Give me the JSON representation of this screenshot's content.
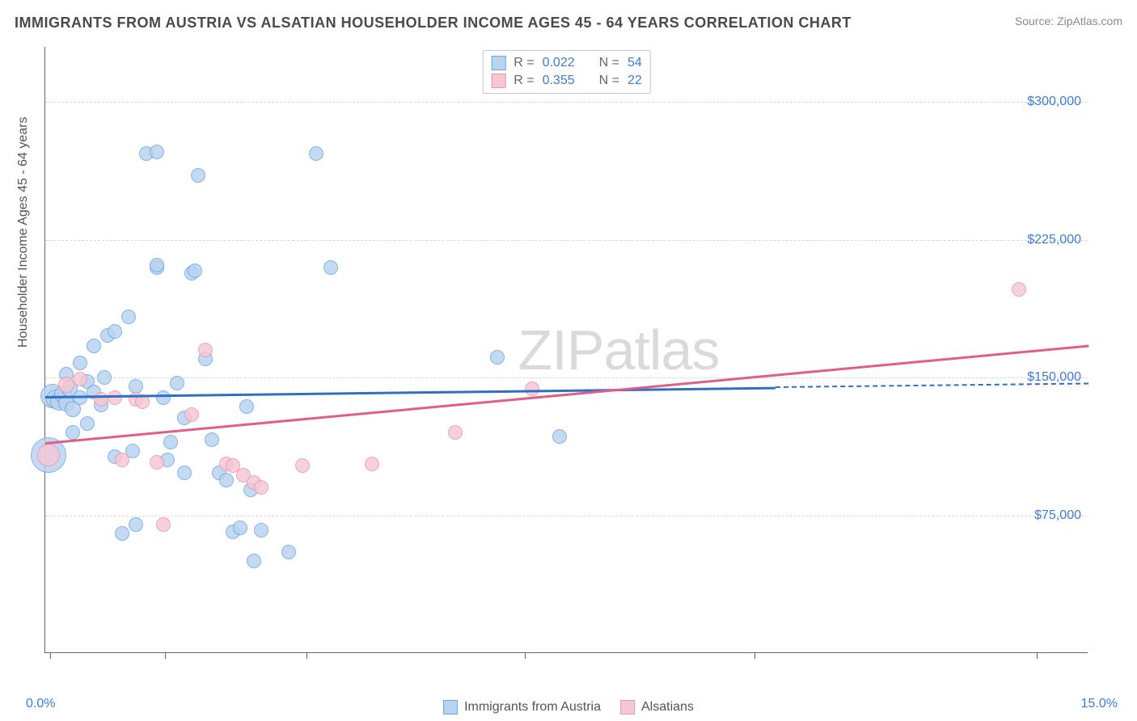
{
  "header": {
    "title": "IMMIGRANTS FROM AUSTRIA VS ALSATIAN HOUSEHOLDER INCOME AGES 45 - 64 YEARS CORRELATION CHART",
    "source": "Source: ZipAtlas.com"
  },
  "watermark": {
    "bold": "ZIP",
    "light": "atlas"
  },
  "chart": {
    "type": "scatter",
    "background_color": "#ffffff",
    "grid_color": "#d8d8d8",
    "axis_color": "#666666",
    "text_color": "#555555",
    "value_color": "#3b7dd8",
    "x": {
      "min": 0.0,
      "max": 15.0,
      "label_min": "0.0%",
      "label_max": "15.0%",
      "ticks_pct": [
        0.5,
        11.5,
        25,
        46,
        68,
        95
      ]
    },
    "y": {
      "min": 0,
      "max": 330000,
      "title": "Householder Income Ages 45 - 64 years",
      "gridlines": [
        {
          "value": 75000,
          "label": "$75,000"
        },
        {
          "value": 150000,
          "label": "$150,000"
        },
        {
          "value": 225000,
          "label": "$225,000"
        },
        {
          "value": 300000,
          "label": "$300,000"
        }
      ]
    },
    "series": [
      {
        "key": "austria",
        "name": "Immigrants from Austria",
        "fill": "#b7d3f0",
        "stroke": "#6ca5e0",
        "opacity": 0.82,
        "r_label": "R =",
        "r_value": "0.022",
        "n_label": "N =",
        "n_value": "54",
        "marker_radius": 9,
        "trend": {
          "x1_pct": 0,
          "y1": 140000,
          "x2_pct": 70,
          "y2": 145000,
          "color": "#2f6fc4",
          "dash_x1_pct": 70,
          "dash_y1": 145000,
          "dash_x2_pct": 100,
          "dash_y2": 147000
        },
        "points": [
          {
            "x": 0.05,
            "y": 108000,
            "r": 22
          },
          {
            "x": 0.1,
            "y": 140000,
            "r": 15
          },
          {
            "x": 0.15,
            "y": 138000,
            "r": 12
          },
          {
            "x": 0.2,
            "y": 137000,
            "r": 11
          },
          {
            "x": 0.25,
            "y": 141000,
            "r": 11
          },
          {
            "x": 0.3,
            "y": 136000,
            "r": 10
          },
          {
            "x": 0.35,
            "y": 144000,
            "r": 10
          },
          {
            "x": 0.4,
            "y": 133000,
            "r": 10
          },
          {
            "x": 0.5,
            "y": 139000,
            "r": 9
          },
          {
            "x": 0.6,
            "y": 148000,
            "r": 9
          },
          {
            "x": 0.7,
            "y": 142000,
            "r": 9
          },
          {
            "x": 0.8,
            "y": 135000,
            "r": 9
          },
          {
            "x": 0.5,
            "y": 158000,
            "r": 9
          },
          {
            "x": 0.7,
            "y": 167000,
            "r": 9
          },
          {
            "x": 0.9,
            "y": 173000,
            "r": 9
          },
          {
            "x": 0.3,
            "y": 152000,
            "r": 9
          },
          {
            "x": 1.0,
            "y": 175000,
            "r": 9
          },
          {
            "x": 1.2,
            "y": 183000,
            "r": 9
          },
          {
            "x": 1.3,
            "y": 145000,
            "r": 9
          },
          {
            "x": 1.45,
            "y": 272000,
            "r": 9
          },
          {
            "x": 1.6,
            "y": 273000,
            "r": 9
          },
          {
            "x": 1.6,
            "y": 210000,
            "r": 9
          },
          {
            "x": 1.6,
            "y": 211000,
            "r": 9
          },
          {
            "x": 1.7,
            "y": 139000,
            "r": 9
          },
          {
            "x": 1.75,
            "y": 105000,
            "r": 9
          },
          {
            "x": 1.8,
            "y": 115000,
            "r": 9
          },
          {
            "x": 1.9,
            "y": 147000,
            "r": 9
          },
          {
            "x": 2.0,
            "y": 98000,
            "r": 9
          },
          {
            "x": 2.0,
            "y": 128000,
            "r": 9
          },
          {
            "x": 2.1,
            "y": 207000,
            "r": 9
          },
          {
            "x": 2.15,
            "y": 208000,
            "r": 9
          },
          {
            "x": 2.2,
            "y": 260000,
            "r": 9
          },
          {
            "x": 2.3,
            "y": 160000,
            "r": 9
          },
          {
            "x": 2.4,
            "y": 116000,
            "r": 9
          },
          {
            "x": 2.5,
            "y": 98000,
            "r": 9
          },
          {
            "x": 2.6,
            "y": 94000,
            "r": 9
          },
          {
            "x": 2.7,
            "y": 66000,
            "r": 9
          },
          {
            "x": 2.8,
            "y": 68000,
            "r": 9
          },
          {
            "x": 2.9,
            "y": 134000,
            "r": 9
          },
          {
            "x": 2.95,
            "y": 89000,
            "r": 9
          },
          {
            "x": 3.0,
            "y": 50000,
            "r": 9
          },
          {
            "x": 3.1,
            "y": 67000,
            "r": 9
          },
          {
            "x": 3.5,
            "y": 55000,
            "r": 9
          },
          {
            "x": 3.9,
            "y": 272000,
            "r": 9
          },
          {
            "x": 4.1,
            "y": 210000,
            "r": 9
          },
          {
            "x": 1.1,
            "y": 65000,
            "r": 9
          },
          {
            "x": 1.3,
            "y": 70000,
            "r": 9
          },
          {
            "x": 1.0,
            "y": 107000,
            "r": 9
          },
          {
            "x": 1.25,
            "y": 110000,
            "r": 9
          },
          {
            "x": 6.5,
            "y": 161000,
            "r": 9
          },
          {
            "x": 7.4,
            "y": 118000,
            "r": 9
          },
          {
            "x": 0.4,
            "y": 120000,
            "r": 9
          },
          {
            "x": 0.6,
            "y": 125000,
            "r": 9
          },
          {
            "x": 0.85,
            "y": 150000,
            "r": 9
          }
        ]
      },
      {
        "key": "alsatian",
        "name": "Alsatians",
        "fill": "#f5c7d4",
        "stroke": "#ea94ac",
        "opacity": 0.82,
        "r_label": "R =",
        "r_value": "0.355",
        "n_label": "N =",
        "n_value": "22",
        "marker_radius": 9,
        "trend": {
          "x1_pct": 0,
          "y1": 115000,
          "x2_pct": 100,
          "y2": 168000,
          "color": "#e05e8a"
        },
        "points": [
          {
            "x": 0.05,
            "y": 108000,
            "r": 14
          },
          {
            "x": 0.3,
            "y": 146000,
            "r": 10
          },
          {
            "x": 0.5,
            "y": 149000,
            "r": 9
          },
          {
            "x": 0.8,
            "y": 138000,
            "r": 9
          },
          {
            "x": 1.0,
            "y": 139000,
            "r": 9
          },
          {
            "x": 1.1,
            "y": 105000,
            "r": 9
          },
          {
            "x": 1.3,
            "y": 138000,
            "r": 9
          },
          {
            "x": 1.4,
            "y": 137000,
            "r": 9
          },
          {
            "x": 1.6,
            "y": 104000,
            "r": 9
          },
          {
            "x": 1.7,
            "y": 70000,
            "r": 9
          },
          {
            "x": 2.1,
            "y": 130000,
            "r": 9
          },
          {
            "x": 2.3,
            "y": 165000,
            "r": 9
          },
          {
            "x": 2.6,
            "y": 103000,
            "r": 9
          },
          {
            "x": 2.7,
            "y": 102000,
            "r": 9
          },
          {
            "x": 2.85,
            "y": 97000,
            "r": 9
          },
          {
            "x": 3.0,
            "y": 93000,
            "r": 9
          },
          {
            "x": 3.1,
            "y": 90000,
            "r": 9
          },
          {
            "x": 3.7,
            "y": 102000,
            "r": 9
          },
          {
            "x": 4.7,
            "y": 103000,
            "r": 9
          },
          {
            "x": 5.9,
            "y": 120000,
            "r": 9
          },
          {
            "x": 7.0,
            "y": 144000,
            "r": 9
          },
          {
            "x": 14.0,
            "y": 198000,
            "r": 9
          }
        ]
      }
    ]
  }
}
